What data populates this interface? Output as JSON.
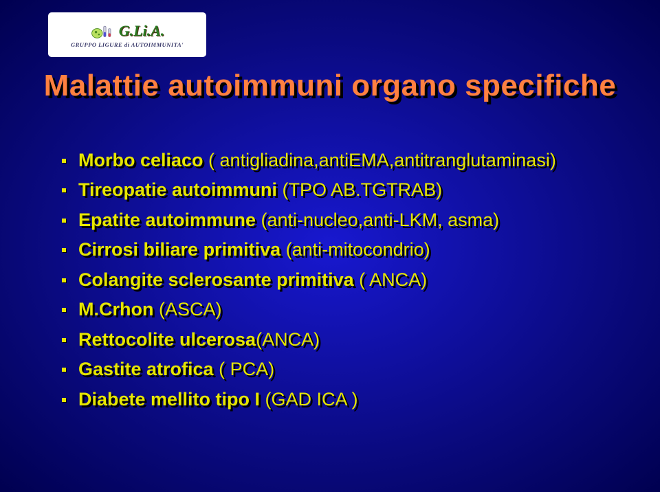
{
  "logo": {
    "main": "G.Li.A.",
    "sub": "GRUPPO LIGURE di AUTOIMMUNITA'"
  },
  "title": "Malattie autoimmuni organo specifiche",
  "bullets": [
    {
      "bold": "Morbo celiaco",
      "rest": " ( antigliadina,antiEMA,antitranglutaminasi)"
    },
    {
      "bold": "Tireopatie autoimmuni",
      "rest": " (TPO AB.TGTRAB)"
    },
    {
      "bold": "Epatite autoimmune",
      "rest": "   (anti-nucleo,anti-LKM, asma)"
    },
    {
      "bold": "Cirrosi biliare primitiva",
      "rest": " (anti-mitocondrio)"
    },
    {
      "bold": "Colangite sclerosante primitiva",
      "rest": " ( ANCA)"
    },
    {
      "bold": "M.Crhon",
      "rest": " (ASCA)"
    },
    {
      "bold": "Rettocolite ulcerosa",
      "rest": "(ANCA)"
    },
    {
      "bold": "Gastite atrofica",
      "rest": " ( PCA)"
    },
    {
      "bold": "Diabete mellito tipo I",
      "rest": " (GAD ICA )"
    }
  ],
  "colors": {
    "title": "#ff8040",
    "text": "#e6e600",
    "shadow": "#000000",
    "bg_center": "#1818d0",
    "bg_edge": "#000050",
    "logo_green": "#2a7a22"
  }
}
